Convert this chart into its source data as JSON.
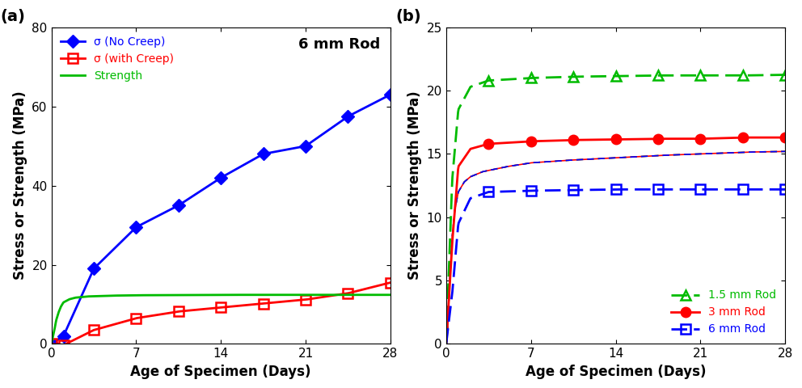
{
  "panel_a": {
    "title": "6 mm Rod",
    "xlabel": "Age of Specimen (Days)",
    "ylabel": "Stress or Strength (MPa)",
    "ylim": [
      0,
      80
    ],
    "xlim": [
      0,
      28
    ],
    "xticks": [
      0,
      7,
      14,
      21,
      28
    ],
    "yticks": [
      0,
      20,
      40,
      60,
      80
    ],
    "no_creep": {
      "x": [
        0,
        1,
        3.5,
        7,
        10.5,
        14,
        17.5,
        21,
        24.5,
        28
      ],
      "y": [
        0,
        2,
        19,
        29.5,
        35,
        42,
        48,
        50,
        57.5,
        63
      ],
      "color": "#0000FF",
      "label": "σ (No Creep)",
      "marker": "D",
      "markersize": 8,
      "linestyle": "-",
      "linewidth": 2.0
    },
    "with_creep": {
      "x": [
        0,
        1,
        3.5,
        7,
        10.5,
        14,
        17.5,
        21,
        24.5,
        28
      ],
      "y": [
        0,
        -0.3,
        3.5,
        6.5,
        8.2,
        9.2,
        10.2,
        11.2,
        12.8,
        15.5
      ],
      "color": "#FF0000",
      "label": "σ (with Creep)",
      "marker": "s",
      "markersize": 8,
      "linestyle": "-",
      "linewidth": 2.0
    },
    "strength": {
      "x_smooth": [
        0,
        0.25,
        0.4,
        0.6,
        0.8,
        1.0,
        1.5,
        2.0,
        3.0,
        5.0,
        7.0,
        14.0,
        21.0,
        28.0
      ],
      "y_smooth": [
        0,
        3.5,
        6.0,
        8.0,
        9.5,
        10.5,
        11.3,
        11.7,
        12.0,
        12.2,
        12.3,
        12.4,
        12.4,
        12.4
      ],
      "color": "#00BB00",
      "label": "Strength",
      "linestyle": "-",
      "linewidth": 2.0
    }
  },
  "panel_b": {
    "xlabel": "Age of Specimen (Days)",
    "ylabel": "Stress or Strength (MPa)",
    "ylim": [
      0,
      25
    ],
    "xlim": [
      0,
      28
    ],
    "xticks": [
      0,
      7,
      14,
      21,
      28
    ],
    "yticks": [
      0,
      5,
      10,
      15,
      20,
      25
    ],
    "stress_x": [
      0,
      0.05,
      0.1,
      0.15,
      0.2,
      0.3,
      0.4,
      0.5,
      0.7,
      1.0,
      1.5,
      2.0,
      3.0,
      5.0,
      7.0,
      10.0,
      14.0,
      18.0,
      21.0,
      25.0,
      28.0
    ],
    "stress_y": [
      0,
      0.2,
      0.8,
      1.8,
      3.0,
      5.0,
      7.0,
      8.5,
      10.5,
      12.0,
      12.8,
      13.2,
      13.6,
      14.0,
      14.3,
      14.5,
      14.7,
      14.9,
      15.0,
      15.15,
      15.2
    ],
    "rod_1_5": {
      "strength_x": [
        0,
        0.5,
        1.0,
        2.0,
        3.5,
        7,
        10.5,
        14,
        17.5,
        21,
        24.5,
        28
      ],
      "strength_y": [
        0,
        13.0,
        18.5,
        20.3,
        20.8,
        21.0,
        21.1,
        21.15,
        21.2,
        21.2,
        21.2,
        21.25
      ],
      "marker_x": [
        3.5,
        7,
        10.5,
        14,
        17.5,
        21,
        24.5,
        28
      ],
      "marker_y": [
        20.8,
        21.0,
        21.1,
        21.15,
        21.2,
        21.2,
        21.2,
        21.25
      ],
      "color": "#00BB00",
      "label": "1.5 mm Rod",
      "marker": "^",
      "markersize": 8,
      "linestyle": "--",
      "linewidth": 2.0
    },
    "rod_3": {
      "strength_x": [
        0,
        0.5,
        1.0,
        2.0,
        3.5,
        7,
        10.5,
        14,
        17.5,
        21,
        24.5,
        28
      ],
      "strength_y": [
        0,
        8.0,
        14.0,
        15.4,
        15.8,
        16.0,
        16.1,
        16.15,
        16.2,
        16.2,
        16.3,
        16.3
      ],
      "marker_x": [
        3.5,
        7,
        10.5,
        14,
        17.5,
        21,
        24.5,
        28
      ],
      "marker_y": [
        15.8,
        16.0,
        16.1,
        16.15,
        16.2,
        16.2,
        16.3,
        16.3
      ],
      "color": "#FF0000",
      "label": "3 mm Rod",
      "marker": "o",
      "markersize": 9,
      "linestyle": "-",
      "linewidth": 2.0
    },
    "rod_6": {
      "strength_x": [
        0,
        0.5,
        1.0,
        2.0,
        3.5,
        7,
        10.5,
        14,
        17.5,
        21,
        24.5,
        28
      ],
      "strength_y": [
        0,
        4.0,
        9.5,
        11.5,
        12.0,
        12.1,
        12.15,
        12.2,
        12.2,
        12.2,
        12.2,
        12.2
      ],
      "marker_x": [
        3.5,
        7,
        10.5,
        14,
        17.5,
        21,
        24.5,
        28
      ],
      "marker_y": [
        12.0,
        12.1,
        12.15,
        12.2,
        12.2,
        12.2,
        12.2,
        12.2
      ],
      "color": "#0000FF",
      "label": "6 mm Rod",
      "marker": "s",
      "markersize": 8,
      "linestyle": "--",
      "linewidth": 2.0
    }
  },
  "background_color": "#FFFFFF",
  "font_size_label": 12,
  "font_size_title": 13,
  "font_size_legend": 10,
  "font_size_tick": 11
}
